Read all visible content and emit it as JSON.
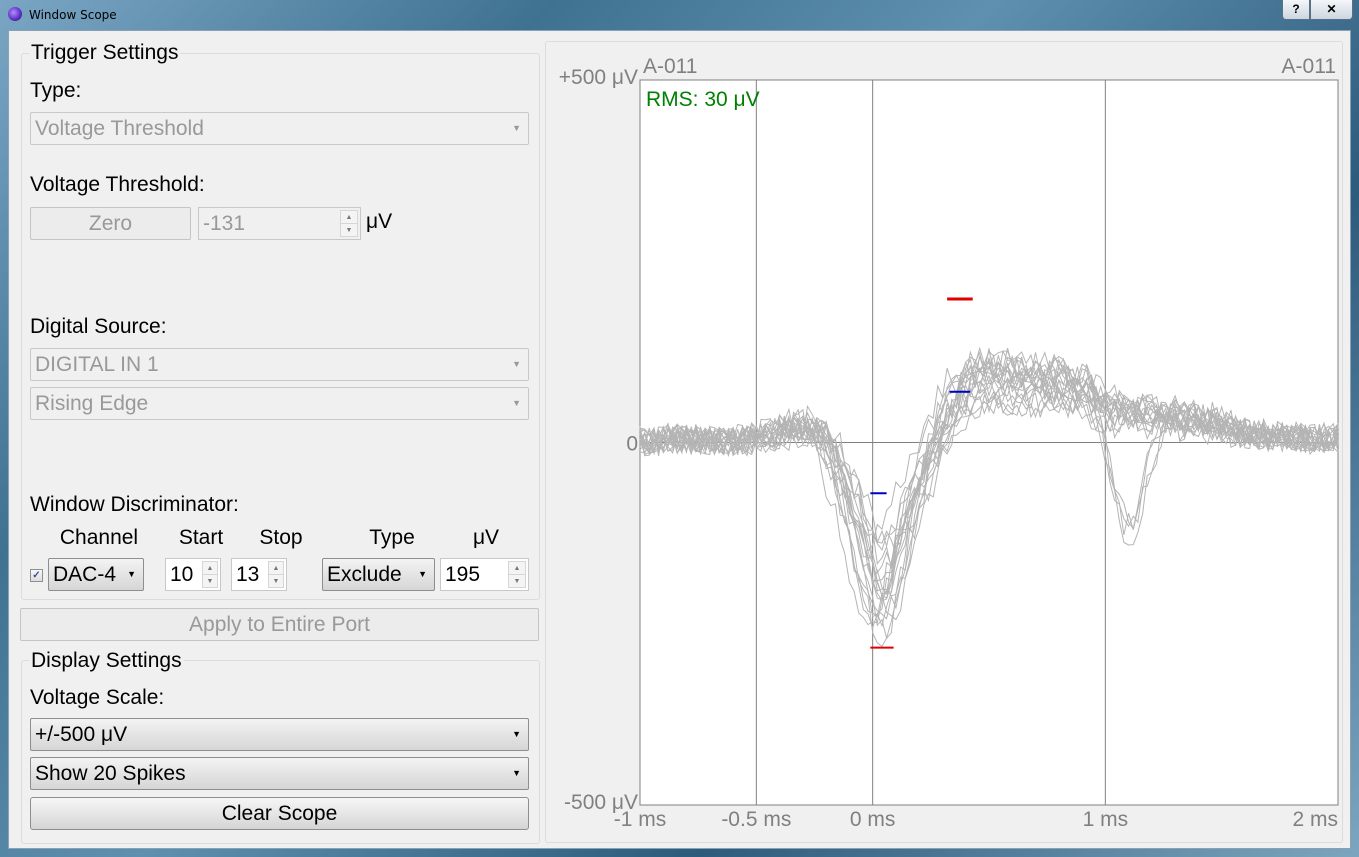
{
  "window": {
    "title": "Window Scope",
    "help_label": "?",
    "close_label": "✕"
  },
  "trigger": {
    "group_title": "Trigger Settings",
    "type_label": "Type:",
    "type_value": "Voltage Threshold",
    "threshold_label": "Voltage Threshold:",
    "zero_label": "Zero",
    "threshold_value": "-131",
    "threshold_unit": "μV",
    "digital_source_label": "Digital Source:",
    "digital_source_value": "DIGITAL IN 1",
    "edge_value": "Rising Edge"
  },
  "window_discriminator": {
    "label": "Window Discriminator:",
    "headers": {
      "channel": "Channel",
      "start": "Start",
      "stop": "Stop",
      "type": "Type",
      "uv": "μV"
    },
    "enabled": true,
    "checkbox_glyph": "✓",
    "channel_value": "DAC-4",
    "start_value": "10",
    "stop_value": "13",
    "type_value": "Exclude",
    "uv_value": "195"
  },
  "apply_button_label": "Apply to Entire Port",
  "display": {
    "group_title": "Display Settings",
    "voltage_scale_label": "Voltage Scale:",
    "voltage_scale_value": "+/-500 μV",
    "spikes_value": "Show 20 Spikes",
    "clear_label": "Clear Scope"
  },
  "colors": {
    "rms_text": "#008000",
    "trace": "#b4b4b4",
    "window_red": "#e00000",
    "window_blue": "#0000c0",
    "label_gray": "#808080"
  },
  "chart_data": {
    "type": "line",
    "channel_label_left": "A-011",
    "channel_label_right": "A-011",
    "rms_label": "RMS: 30 μV",
    "y_tick_labels": [
      "+500 μV",
      "0",
      "-500 μV"
    ],
    "x_tick_labels": [
      "-1 ms",
      "-0.5 ms",
      "0 ms",
      "1 ms",
      "2 ms"
    ],
    "x_ticks_ms": [
      -1,
      -0.5,
      0,
      1,
      2
    ],
    "xlim_ms": [
      -1,
      2
    ],
    "ylim_uv": [
      -500,
      500
    ],
    "vertical_gridlines_ms": [
      -0.5,
      0,
      1
    ],
    "zero_line": true,
    "windows": [
      {
        "color": "red",
        "t_ms": [
          0.32,
          0.43
        ],
        "v_uv": 198
      },
      {
        "color": "blue",
        "t_ms": [
          0.33,
          0.42
        ],
        "v_uv": 70
      },
      {
        "color": "blue",
        "t_ms": [
          -0.01,
          0.06
        ],
        "v_uv": -70
      },
      {
        "color": "red",
        "t_ms": [
          -0.01,
          0.09
        ],
        "v_uv": -283
      }
    ],
    "template_spike": {
      "t_ms": [
        -1.0,
        -0.8,
        -0.6,
        -0.4,
        -0.3,
        -0.2,
        -0.1,
        -0.05,
        0.0,
        0.05,
        0.1,
        0.15,
        0.2,
        0.3,
        0.4,
        0.5,
        0.7,
        0.9,
        1.0,
        1.1,
        1.2,
        1.4,
        1.6,
        1.8,
        2.0
      ],
      "v_uv": [
        0,
        5,
        0,
        10,
        20,
        5,
        -60,
        -110,
        -150,
        -160,
        -130,
        -80,
        -40,
        20,
        60,
        70,
        65,
        60,
        40,
        30,
        30,
        25,
        10,
        5,
        5
      ]
    },
    "spike_count": 20
  }
}
